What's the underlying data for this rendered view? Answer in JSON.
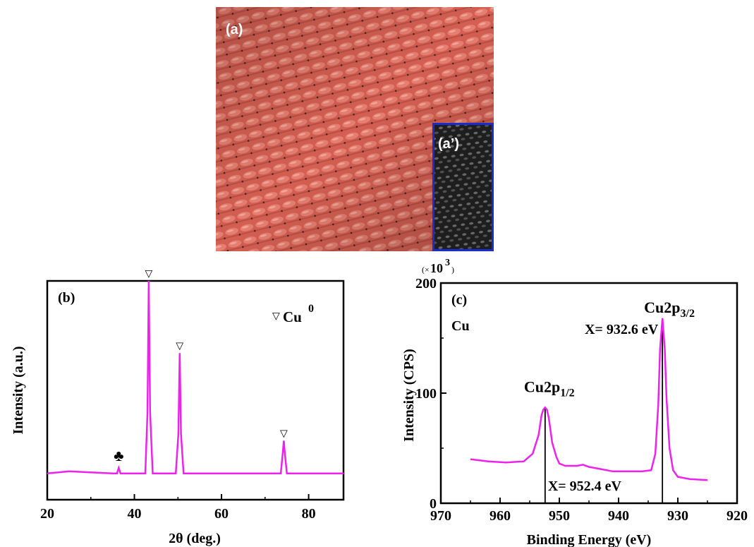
{
  "panel_a": {
    "label": "(a)",
    "inset_label": "(a’)",
    "fabric_color": "#d86a5a",
    "inset_border": "#1a2ccc"
  },
  "colors": {
    "series": "#ee22ee",
    "axis": "#000000"
  },
  "chart_data": [
    {
      "type": "line",
      "panel_label": "(b)",
      "xlabel": "2θ (deg.)",
      "ylabel": "Intensity (a.u.)",
      "xlim": [
        20,
        88
      ],
      "ylim": [
        0,
        100
      ],
      "xticks": [
        20,
        40,
        60,
        80
      ],
      "grid": false,
      "legend": {
        "position": "top-right",
        "symbol": "▽",
        "text": "Cu",
        "superscript": "0"
      },
      "series": [
        {
          "x": [
            20,
            25,
            30,
            35,
            36,
            36.4,
            36.8,
            37.5,
            42.5,
            43.0,
            43.3,
            43.6,
            44.2,
            49.5,
            50.1,
            50.4,
            50.7,
            51.3,
            60,
            65,
            70,
            73.6,
            74.1,
            74.3,
            74.5,
            75.0,
            80,
            88
          ],
          "y": [
            12,
            13,
            12.5,
            12,
            12,
            14.5,
            12,
            12,
            12,
            40,
            100,
            40,
            12,
            12,
            30,
            67,
            30,
            12,
            12,
            12,
            12,
            12,
            22,
            27,
            22,
            12,
            12,
            12
          ]
        }
      ],
      "annotations": [
        {
          "text": "▽",
          "x": 43.3,
          "y": 100
        },
        {
          "text": "▽",
          "x": 50.4,
          "y": 67
        },
        {
          "text": "▽",
          "x": 74.3,
          "y": 27
        },
        {
          "text": "♣",
          "x": 36.4,
          "y": 14.5
        }
      ]
    },
    {
      "type": "line",
      "panel_label": "(c)",
      "element_label": "Cu",
      "xlabel": "Binding Energy (eV)",
      "ylabel": "Intensity (CPS)",
      "axis_multiplier": {
        "prefix": "(×",
        "base": "10",
        "exp": "3",
        "suffix": ")"
      },
      "xlim": [
        970,
        920
      ],
      "ylim": [
        0,
        200
      ],
      "xticks": [
        970,
        960,
        950,
        940,
        930,
        920
      ],
      "yticks": [
        0,
        100,
        200
      ],
      "grid": false,
      "series": [
        {
          "x": [
            965,
            962,
            959,
            956,
            954.5,
            953.5,
            953,
            952.7,
            952.4,
            952.1,
            951.8,
            951.2,
            950.5,
            950,
            949,
            947,
            946,
            945,
            943,
            941,
            938,
            936,
            934.5,
            933.8,
            933.3,
            933.0,
            932.6,
            932.2,
            931.9,
            931.4,
            930.8,
            930,
            928,
            925
          ],
          "y": [
            40,
            38,
            37,
            38,
            45,
            62,
            80,
            85,
            87,
            85,
            78,
            55,
            42,
            36,
            34,
            34,
            35,
            33,
            31,
            29,
            29,
            29,
            30,
            45,
            90,
            140,
            168,
            140,
            95,
            50,
            30,
            24,
            22,
            21
          ]
        }
      ],
      "peaks": [
        {
          "x": 952.4,
          "y": 87,
          "name": "Cu2p",
          "sub": "1/2",
          "value_label": "X= 952.4 eV"
        },
        {
          "x": 932.6,
          "y": 168,
          "name": "Cu2p",
          "sub": "3/2",
          "value_label": "X= 932.6 eV"
        }
      ]
    }
  ]
}
